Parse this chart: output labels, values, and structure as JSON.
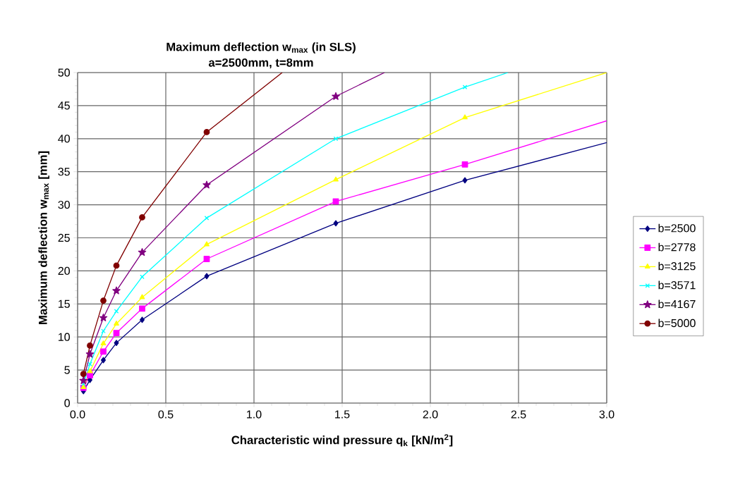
{
  "chart_data": {
    "type": "line",
    "title": "Maximum deflection w$_{max}$ (in SLS)",
    "subtitle": "a=2500mm, t=8mm",
    "xlabel": "Characteristic wind pressure q$_{k}$ [kN/m$^{2}$]",
    "ylabel": "Maximum deflection w$_{max}$ [mm]",
    "xlim": [
      0,
      3.0
    ],
    "ylim": [
      0,
      50
    ],
    "xticks": [
      {
        "value": 0,
        "label": "0.0"
      },
      0.5,
      {
        "value": 1,
        "label": "1.0"
      },
      1.5,
      {
        "value": 2,
        "label": "2.0"
      },
      2.5,
      {
        "value": 3,
        "label": "3.0"
      }
    ],
    "yticks": [
      0,
      5,
      10,
      15,
      20,
      25,
      30,
      35,
      40,
      45,
      50
    ],
    "grid": true,
    "legend": "right",
    "line_style": "solid",
    "series": [
      {
        "name": "b=2500",
        "color": "#000080",
        "marker": "diamond",
        "x": [
          0.033,
          0.07,
          0.146,
          0.22,
          0.366,
          0.732,
          1.464,
          2.196,
          3.0
        ],
        "values": [
          1.8,
          3.5,
          6.5,
          9.1,
          12.6,
          19.2,
          27.2,
          33.7,
          39.4
        ]
      },
      {
        "name": "b=2778",
        "color": "#ff00ff",
        "marker": "square",
        "x": [
          0.033,
          0.07,
          0.146,
          0.22,
          0.366,
          0.732,
          1.464,
          2.196,
          3.0
        ],
        "values": [
          2.3,
          4.2,
          7.8,
          10.6,
          14.3,
          21.8,
          30.5,
          36.1,
          42.7
        ]
      },
      {
        "name": "b=3125",
        "color": "#ffff00",
        "marker": "triangle",
        "x": [
          0.033,
          0.07,
          0.146,
          0.22,
          0.366,
          0.732,
          1.464,
          2.196,
          3.0
        ],
        "values": [
          2.4,
          4.8,
          9.0,
          12.0,
          16.0,
          24.0,
          33.8,
          43.2,
          50
        ]
      },
      {
        "name": "b=3571",
        "color": "#00ffff",
        "marker": "cross",
        "x": [
          0.033,
          0.07,
          0.146,
          0.22,
          0.366,
          0.732,
          1.464,
          2.196,
          2.44
        ],
        "values": [
          2.9,
          5.9,
          10.9,
          13.9,
          19.1,
          28.0,
          40.0,
          47.8,
          50
        ]
      },
      {
        "name": "b=4167",
        "color": "#800080",
        "marker": "star",
        "x": [
          0.033,
          0.07,
          0.146,
          0.22,
          0.366,
          0.732,
          1.464,
          1.74
        ],
        "values": [
          3.4,
          7.4,
          12.9,
          17.0,
          22.8,
          33.0,
          46.4,
          50
        ]
      },
      {
        "name": "b=5000",
        "color": "#800000",
        "marker": "circle",
        "x": [
          0.033,
          0.07,
          0.146,
          0.22,
          0.366,
          0.732,
          1.16
        ],
        "values": [
          4.4,
          8.7,
          15.5,
          20.8,
          28.1,
          41.0,
          50
        ]
      }
    ]
  }
}
